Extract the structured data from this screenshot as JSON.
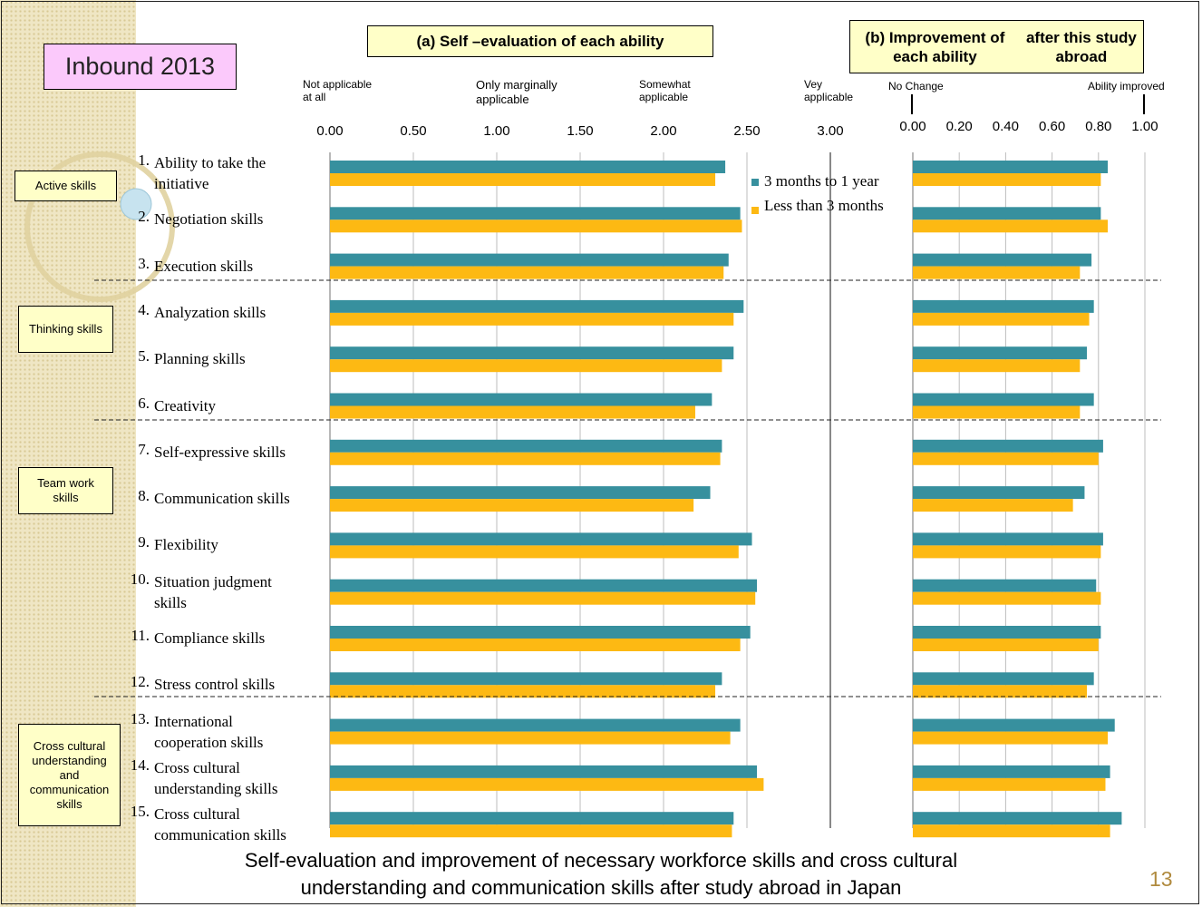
{
  "slide": {
    "title": "Inbound 2013",
    "caption_lines": [
      "Self-evaluation and improvement of necessary workforce skills and cross cultural",
      "understanding and communication skills after study abroad in Japan"
    ],
    "page_number": "13"
  },
  "groups": [
    {
      "label": "Active skills"
    },
    {
      "label": "Thinking skills"
    },
    {
      "label": "Team work skills"
    },
    {
      "label": "Cross cultural understanding and communication skills"
    }
  ],
  "categories": [
    {
      "num": "1.",
      "lines": [
        "Ability to take the",
        "initiative"
      ]
    },
    {
      "num": "2.",
      "lines": [
        "Negotiation skills"
      ]
    },
    {
      "num": "3.",
      "lines": [
        "Execution skills"
      ]
    },
    {
      "num": "4.",
      "lines": [
        "Analyzation skills"
      ]
    },
    {
      "num": "5.",
      "lines": [
        "Planning skills"
      ]
    },
    {
      "num": "6.",
      "lines": [
        "Creativity"
      ]
    },
    {
      "num": "7.",
      "lines": [
        "Self-expressive skills"
      ]
    },
    {
      "num": "8.",
      "lines": [
        "Communication skills"
      ]
    },
    {
      "num": "9.",
      "lines": [
        "Flexibility"
      ]
    },
    {
      "num": "10.",
      "lines": [
        "Situation judgment",
        "skills"
      ]
    },
    {
      "num": "11.",
      "lines": [
        "Compliance skills"
      ]
    },
    {
      "num": "12.",
      "lines": [
        "Stress control skills"
      ]
    },
    {
      "num": "13.",
      "lines": [
        "International",
        "cooperation  skills"
      ]
    },
    {
      "num": "14.",
      "lines": [
        "Cross cultural",
        "understanding skills"
      ]
    },
    {
      "num": "15.",
      "lines": [
        "Cross cultural",
        "communication skills"
      ]
    }
  ],
  "chart_data": [
    {
      "type": "bar",
      "orientation": "horizontal",
      "title": "(a) Self –evaluation of each ability",
      "scale_labels": [
        {
          "lines": [
            "Not applicable",
            "at all"
          ]
        },
        {
          "lines": [
            "Only marginally",
            "applicable"
          ]
        },
        {
          "lines": [
            "Somewhat",
            "applicable"
          ]
        },
        {
          "lines": [
            "Vey",
            "applicable"
          ]
        }
      ],
      "xlim": [
        0,
        3
      ],
      "ticks": [
        "0.00",
        "0.50",
        "1.00",
        "1.50",
        "2.00",
        "2.50",
        "3.00"
      ],
      "legend_position": "top-right",
      "series": [
        {
          "name": "3 months to  1 year",
          "color": "#37909e",
          "values": [
            2.37,
            2.46,
            2.39,
            2.48,
            2.42,
            2.29,
            2.35,
            2.28,
            2.53,
            2.56,
            2.52,
            2.35,
            2.46,
            2.56,
            2.42
          ]
        },
        {
          "name": "Less than 3 months",
          "color": "#fdb913",
          "values": [
            2.31,
            2.47,
            2.36,
            2.42,
            2.35,
            2.19,
            2.34,
            2.18,
            2.45,
            2.55,
            2.46,
            2.31,
            2.4,
            2.6,
            2.41
          ]
        }
      ]
    },
    {
      "type": "bar",
      "orientation": "horizontal",
      "title_lines": [
        "(b) Improvement of each ability",
        "after this study abroad"
      ],
      "scale_labels": [
        "No Change",
        "Ability improved"
      ],
      "xlim": [
        0,
        1
      ],
      "ticks": [
        "0.00",
        "0.20",
        "0.40",
        "0.60",
        "0.80",
        "1.00"
      ],
      "series": [
        {
          "name": "3 months to  1 year",
          "color": "#37909e",
          "values": [
            0.84,
            0.81,
            0.77,
            0.78,
            0.75,
            0.78,
            0.82,
            0.74,
            0.82,
            0.79,
            0.81,
            0.78,
            0.87,
            0.85,
            0.9
          ]
        },
        {
          "name": "Less than 3 months",
          "color": "#fdb913",
          "values": [
            0.81,
            0.84,
            0.72,
            0.76,
            0.72,
            0.72,
            0.8,
            0.69,
            0.81,
            0.81,
            0.8,
            0.75,
            0.84,
            0.83,
            0.85
          ]
        }
      ]
    }
  ]
}
